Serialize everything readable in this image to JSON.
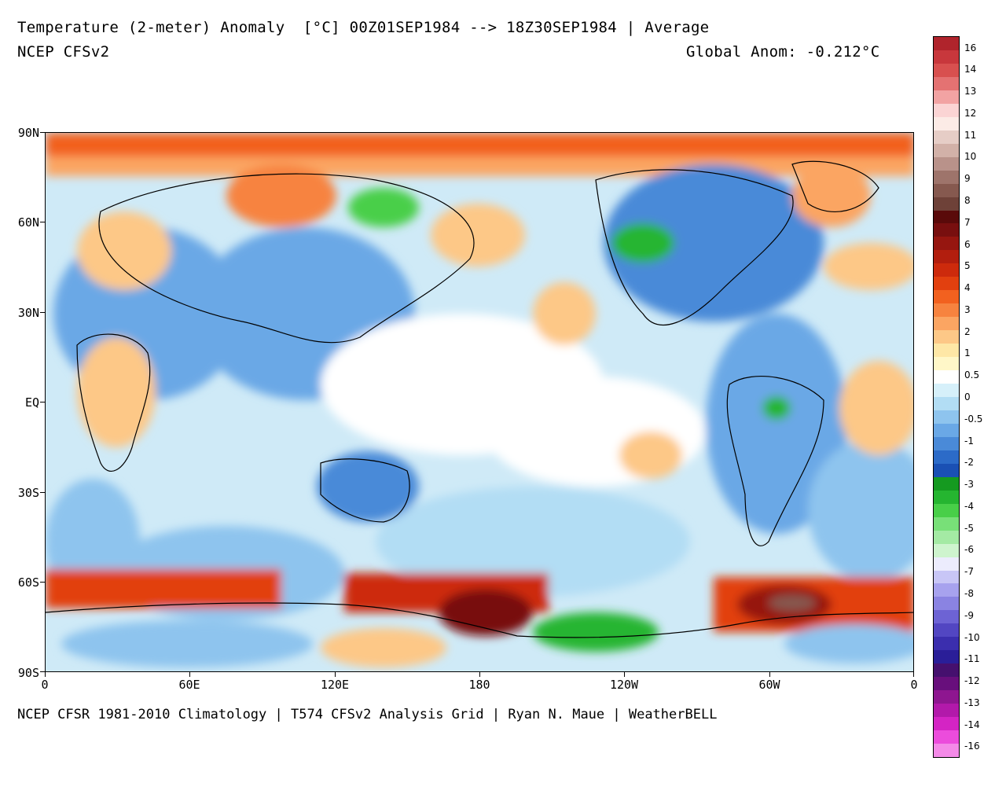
{
  "header": {
    "title": "Temperature (2-meter) Anomaly  [°C] 00Z01SEP1984 --> 18Z30SEP1984 | Average",
    "model": "NCEP CFSv2",
    "global_anom": "Global Anom: -0.212°C"
  },
  "footer": {
    "credit": "NCEP CFSR 1981-2010 Climatology | T574 CFSv2 Analysis Grid | Ryan N. Maue | WeatherBELL"
  },
  "axes": {
    "lat_labels": [
      "90N",
      "60N",
      "30N",
      "EQ",
      "30S",
      "60S",
      "90S"
    ],
    "lon_labels": [
      "0",
      "60E",
      "120E",
      "180",
      "120W",
      "60W",
      "0"
    ]
  },
  "colorbar": {
    "labels": [
      "16",
      "14",
      "13",
      "12",
      "11",
      "10",
      "9",
      "8",
      "7",
      "6",
      "5",
      "4",
      "3",
      "2",
      "1",
      "0.5",
      "0",
      "-0.5",
      "-1",
      "-2",
      "-3",
      "-4",
      "-5",
      "-6",
      "-7",
      "-8",
      "-9",
      "-10",
      "-11",
      "-12",
      "-13",
      "-14",
      "-16"
    ],
    "colors": [
      "#b0242c",
      "#c8373c",
      "#d8504f",
      "#e47272",
      "#f2a3a3",
      "#fbd4d4",
      "#fcebe6",
      "#e6cdc6",
      "#d2b1a8",
      "#b9928a",
      "#9e746b",
      "#86594f",
      "#6e4138",
      "#5a0a0a",
      "#780f0f",
      "#961610",
      "#b21e0e",
      "#cd2a0c",
      "#e2400f",
      "#f2611f",
      "#f7833f",
      "#fba562",
      "#fdc887",
      "#fee7a6",
      "#fff7c8",
      "#ffffff",
      "#d6f0fa",
      "#b2ddf4",
      "#8ec4ee",
      "#6aa8e6",
      "#4a8ad8",
      "#2c6bc8",
      "#1a50b4",
      "#159a20",
      "#25b530",
      "#48cf48",
      "#78e078",
      "#a4eaa4",
      "#cef4ce",
      "#ececfd",
      "#c8c6f6",
      "#a7a2ee",
      "#8a83e2",
      "#6d63d4",
      "#5246c2",
      "#3b2eae",
      "#2a1e98",
      "#45106e",
      "#680f7c",
      "#8e1690",
      "#b219aa",
      "#d424c4",
      "#ec4cdc",
      "#f48ae8"
    ]
  }
}
